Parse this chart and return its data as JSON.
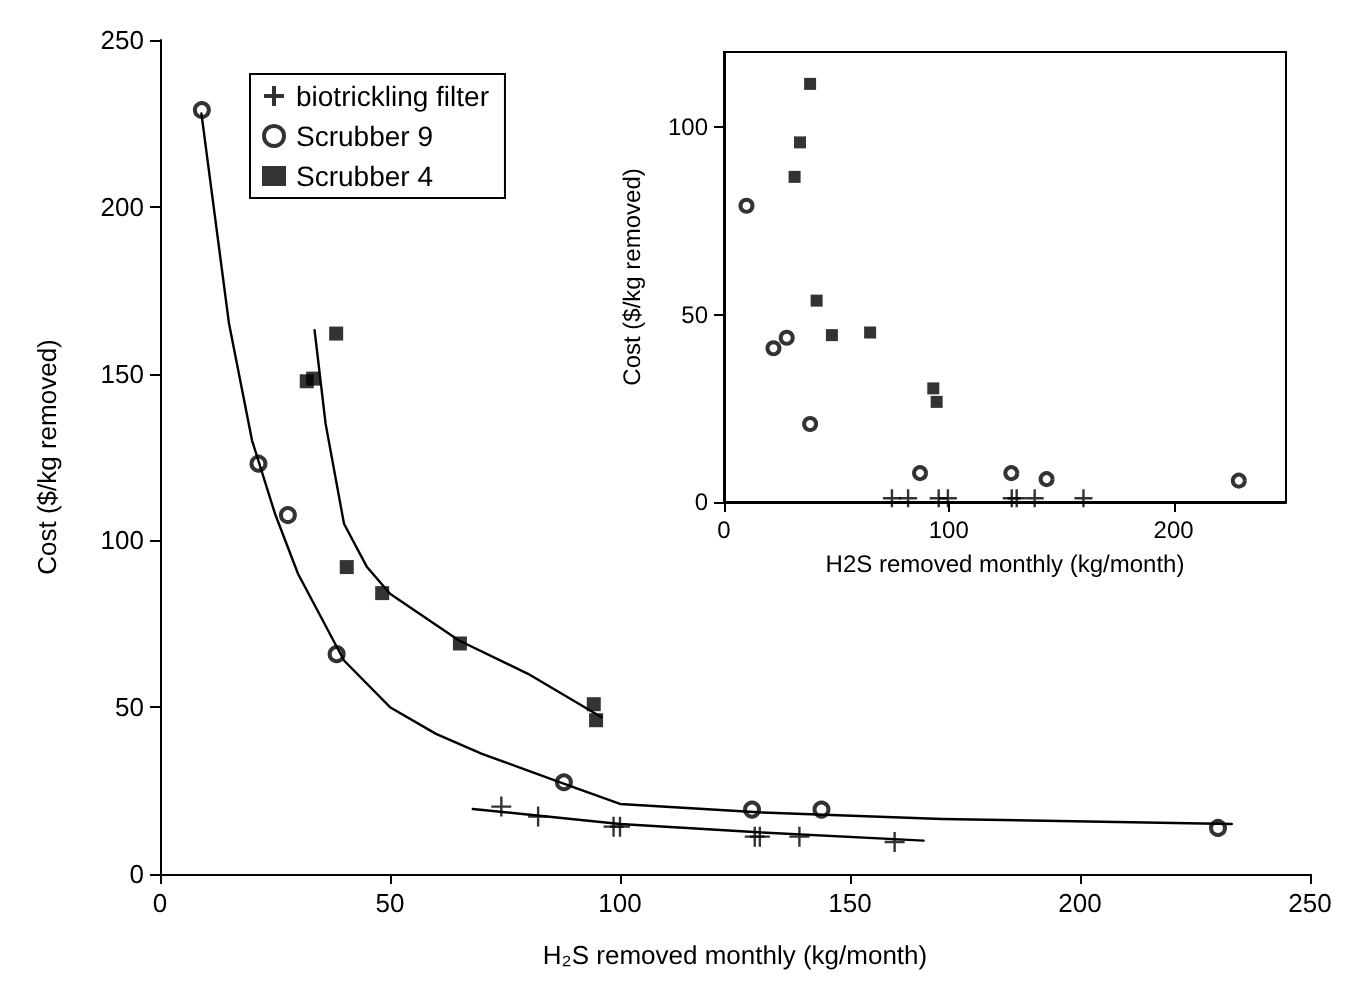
{
  "chart_data": [
    {
      "type": "scatter",
      "xlabel": "H₂S removed monthly (kg/month)",
      "ylabel": "Cost ($/kg removed)",
      "xlim": [
        0,
        250
      ],
      "ylim": [
        0,
        250
      ],
      "xticks": [
        0,
        50,
        100,
        150,
        200,
        250
      ],
      "yticks": [
        0,
        50,
        100,
        150,
        200,
        250
      ],
      "legend": "top left",
      "grid": false,
      "series": [
        {
          "name": "biotrickling filter",
          "marker": "cross",
          "color": "#000000",
          "x": [
            74.2,
            82.2,
            98.6,
            100,
            129.3,
            130.4,
            139,
            159.7
          ],
          "values": [
            20.2,
            17.2,
            14.2,
            14.2,
            11.2,
            11.2,
            11.2,
            9.6
          ]
        },
        {
          "name": "Scrubber 9",
          "marker": "circle",
          "color": "#000000",
          "x": [
            9.1,
            21.4,
            27.8,
            38.4,
            87.8,
            128.7,
            143.8,
            230
          ],
          "values": [
            229,
            123,
            107.6,
            65.9,
            27.5,
            19.3,
            19.3,
            13.8
          ]
        },
        {
          "name": "Scrubber 4",
          "marker": "square",
          "color": "#000000",
          "x": [
            38.3,
            31.9,
            33.3,
            40.6,
            48.3,
            65.2,
            94.3,
            94.8
          ],
          "values": [
            162,
            147.7,
            148.5,
            92,
            84.2,
            69.1,
            50.9,
            46.1
          ]
        },
        {
          "type": "line",
          "marker": "none",
          "color": "#000000",
          "x": [
            68,
            100,
            130,
            166
          ],
          "values": [
            19.5,
            15,
            12.5,
            10
          ]
        },
        {
          "type": "line",
          "marker": "none",
          "color": "#000000",
          "x": [
            9,
            15,
            20,
            25,
            30,
            40,
            50,
            60,
            70,
            80,
            90,
            100,
            130,
            170,
            233
          ],
          "values": [
            228,
            165,
            130,
            108,
            90,
            64,
            50,
            42,
            36,
            31,
            26,
            21,
            18.5,
            16.5,
            15
          ]
        },
        {
          "type": "line",
          "marker": "none",
          "color": "#000000",
          "x": [
            33.6,
            36,
            40,
            45,
            50,
            65,
            80,
            96
          ],
          "values": [
            163,
            135,
            105,
            92,
            84,
            70,
            60,
            47
          ]
        }
      ]
    },
    {
      "type": "scatter",
      "xlabel": "H2S removed monthly (kg/month)",
      "ylabel": "Cost ($/kg removed)",
      "xlim": [
        0,
        250
      ],
      "ylim": [
        0,
        120
      ],
      "xticks": [
        0,
        100,
        200
      ],
      "yticks": [
        0,
        50,
        100
      ],
      "grid": false,
      "series": [
        {
          "marker": "cross",
          "color": "#000000",
          "x": [
            74.7,
            81.9,
            95.5,
            99.6,
            128,
            130.2,
            138.2,
            159.9
          ],
          "values": [
            1,
            1,
            1,
            1,
            1,
            1,
            1,
            1
          ]
        },
        {
          "marker": "circle",
          "color": "#000000",
          "x": [
            10,
            22,
            27.9,
            38.3,
            87.2,
            127.8,
            143.5,
            229
          ],
          "values": [
            79,
            41,
            43.8,
            20.8,
            7.7,
            7.7,
            6.1,
            5.7
          ]
        },
        {
          "marker": "square",
          "color": "#000000",
          "x": [
            38.3,
            33.8,
            31.4,
            41.2,
            48,
            65,
            93.1,
            94.6
          ],
          "values": [
            111.5,
            95.9,
            86.7,
            53.7,
            44.5,
            45.2,
            30.3,
            26.7
          ]
        }
      ]
    }
  ]
}
